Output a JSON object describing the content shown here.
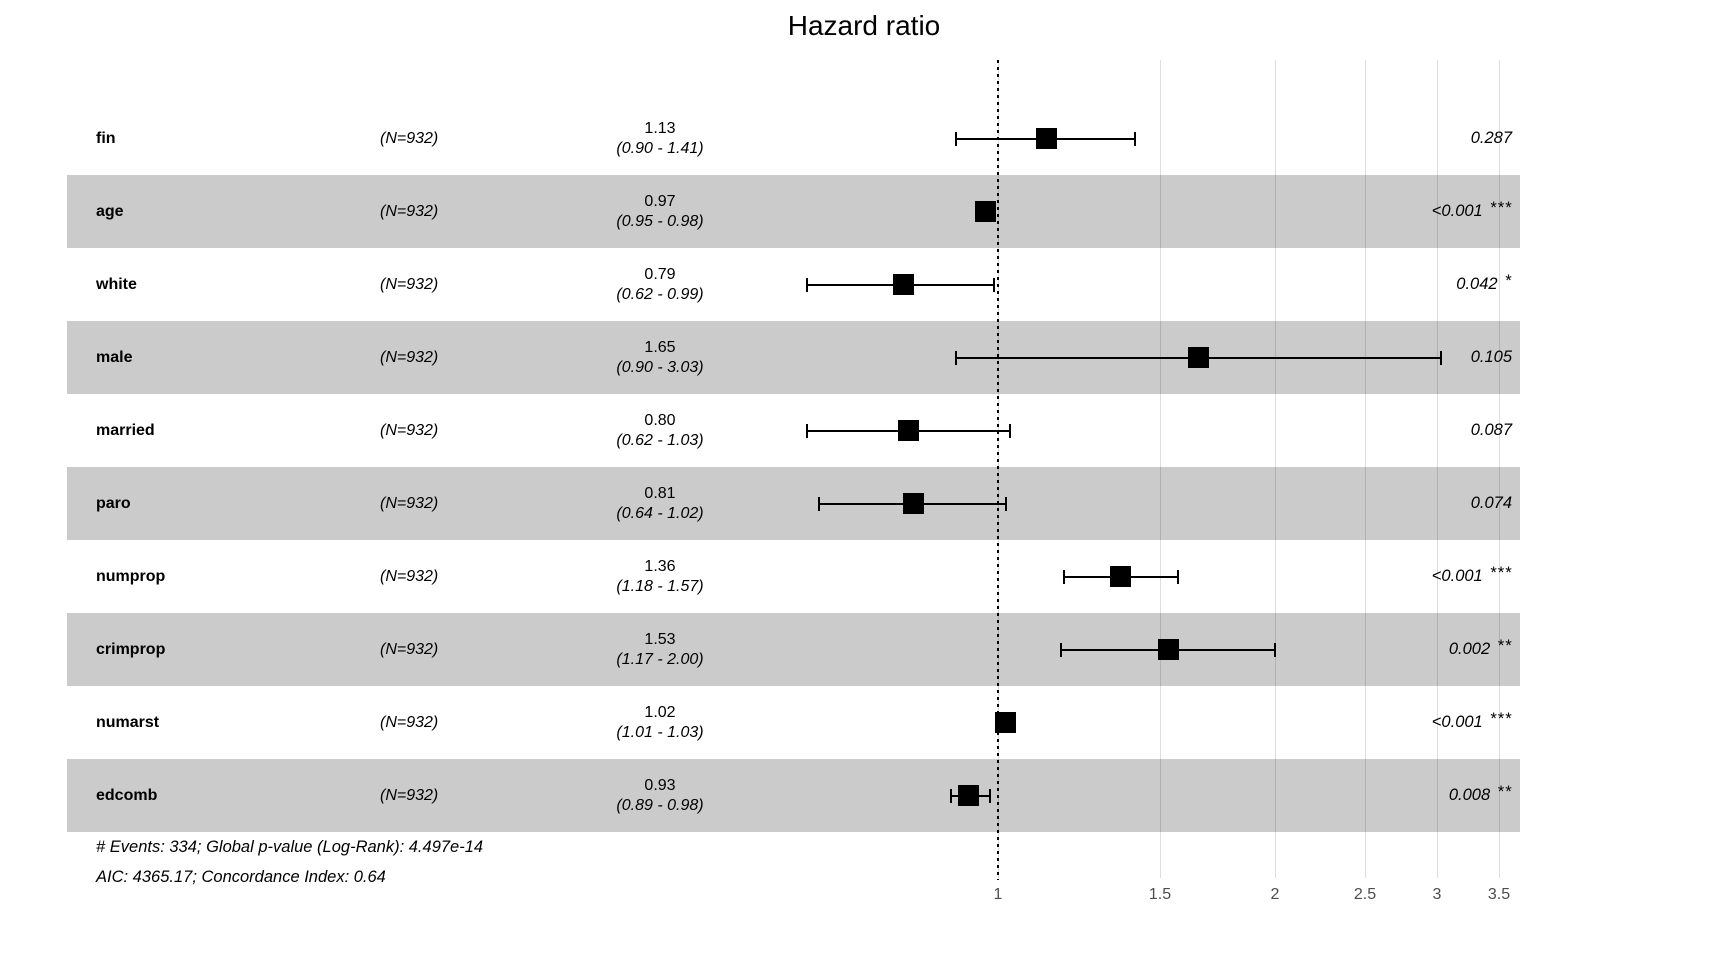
{
  "title": "Hazard ratio",
  "colors": {
    "band": "#CBCBCB",
    "marker": "#000000",
    "reference_line": "#000000",
    "gridline": "#DBDBDB",
    "tick_label": "#4D4D4D",
    "text": "#000000"
  },
  "chart_data": {
    "type": "forest",
    "title": "Hazard ratio",
    "x_scale": "log",
    "x_ticks": [
      1,
      1.5,
      2,
      2.5,
      3,
      3.5
    ],
    "x_tick_labels": [
      "1",
      "1.5",
      "2",
      "2.5",
      "3",
      "3.5"
    ],
    "reference_line": 1,
    "grid": true,
    "legend": "none",
    "rows": [
      {
        "variable": "fin",
        "n": "(N=932)",
        "estimate": 1.13,
        "ci_low": 0.9,
        "ci_high": 1.41,
        "estimate_label": "1.13",
        "ci_label": "(0.90 - 1.41)",
        "p_value": "0.287",
        "significance": "",
        "shaded": false
      },
      {
        "variable": "age",
        "n": "(N=932)",
        "estimate": 0.97,
        "ci_low": 0.95,
        "ci_high": 0.98,
        "estimate_label": "0.97",
        "ci_label": "(0.95 - 0.98)",
        "p_value": "<0.001",
        "significance": "***",
        "shaded": true
      },
      {
        "variable": "white",
        "n": "(N=932)",
        "estimate": 0.79,
        "ci_low": 0.62,
        "ci_high": 0.99,
        "estimate_label": "0.79",
        "ci_label": "(0.62 - 0.99)",
        "p_value": "0.042",
        "significance": "*",
        "shaded": false
      },
      {
        "variable": "male",
        "n": "(N=932)",
        "estimate": 1.65,
        "ci_low": 0.9,
        "ci_high": 3.03,
        "estimate_label": "1.65",
        "ci_label": "(0.90 - 3.03)",
        "p_value": "0.105",
        "significance": "",
        "shaded": true
      },
      {
        "variable": "married",
        "n": "(N=932)",
        "estimate": 0.8,
        "ci_low": 0.62,
        "ci_high": 1.03,
        "estimate_label": "0.80",
        "ci_label": "(0.62 - 1.03)",
        "p_value": "0.087",
        "significance": "",
        "shaded": false
      },
      {
        "variable": "paro",
        "n": "(N=932)",
        "estimate": 0.81,
        "ci_low": 0.64,
        "ci_high": 1.02,
        "estimate_label": "0.81",
        "ci_label": "(0.64 - 1.02)",
        "p_value": "0.074",
        "significance": "",
        "shaded": true
      },
      {
        "variable": "numprop",
        "n": "(N=932)",
        "estimate": 1.36,
        "ci_low": 1.18,
        "ci_high": 1.57,
        "estimate_label": "1.36",
        "ci_label": "(1.18 - 1.57)",
        "p_value": "<0.001",
        "significance": "***",
        "shaded": false
      },
      {
        "variable": "crimprop",
        "n": "(N=932)",
        "estimate": 1.53,
        "ci_low": 1.17,
        "ci_high": 2.0,
        "estimate_label": "1.53",
        "ci_label": "(1.17 - 2.00)",
        "p_value": "0.002",
        "significance": "**",
        "shaded": true
      },
      {
        "variable": "numarst",
        "n": "(N=932)",
        "estimate": 1.02,
        "ci_low": 1.01,
        "ci_high": 1.03,
        "estimate_label": "1.02",
        "ci_label": "(1.01 - 1.03)",
        "p_value": "<0.001",
        "significance": "***",
        "shaded": false
      },
      {
        "variable": "edcomb",
        "n": "(N=932)",
        "estimate": 0.93,
        "ci_low": 0.89,
        "ci_high": 0.98,
        "estimate_label": "0.93",
        "ci_label": "(0.89 - 0.98)",
        "p_value": "0.008",
        "significance": "**",
        "shaded": true
      }
    ],
    "footnotes": [
      "# Events: 334; Global p-value (Log-Rank): 4.497e-14",
      "AIC: 4365.17; Concordance Index: 0.64"
    ]
  }
}
